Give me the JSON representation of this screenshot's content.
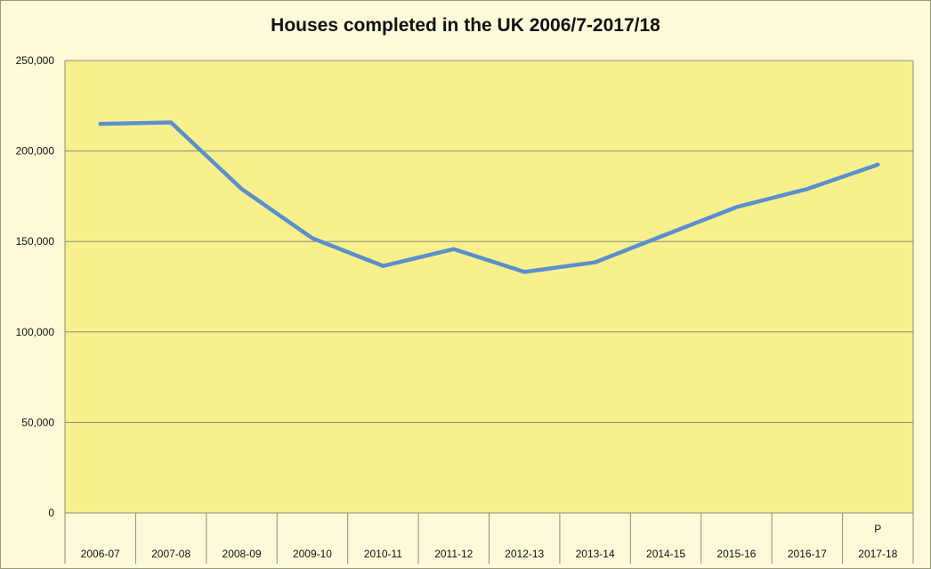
{
  "chart_data": {
    "type": "line",
    "title": "Houses completed in the UK 2006/7-2017/18",
    "xlabel": "",
    "ylabel": "",
    "categories": [
      "2006-07",
      "2007-08",
      "2008-09",
      "2009-10",
      "2010-11",
      "2011-12",
      "2012-13",
      "2013-14",
      "2014-15",
      "2015-16",
      "2016-17",
      "2017-18"
    ],
    "category_annotations": [
      "",
      "",
      "",
      "",
      "",
      "",
      "",
      "",
      "",
      "",
      "",
      "P"
    ],
    "yticks": [
      "0",
      "50,000",
      "100,000",
      "150,000",
      "200,000",
      "250,000"
    ],
    "ylim": [
      0,
      250000
    ],
    "grid": true,
    "legend": "none",
    "series": [
      {
        "values": [
          215000,
          215800,
          179000,
          151800,
          136500,
          145800,
          133200,
          138500,
          153800,
          169000,
          179000,
          192500
        ],
        "color": "#5b8fcd"
      }
    ],
    "colors": {
      "plot_background": "#f7f08c",
      "page_background": "#fefad9",
      "gridline": "#8c8c7a"
    }
  }
}
